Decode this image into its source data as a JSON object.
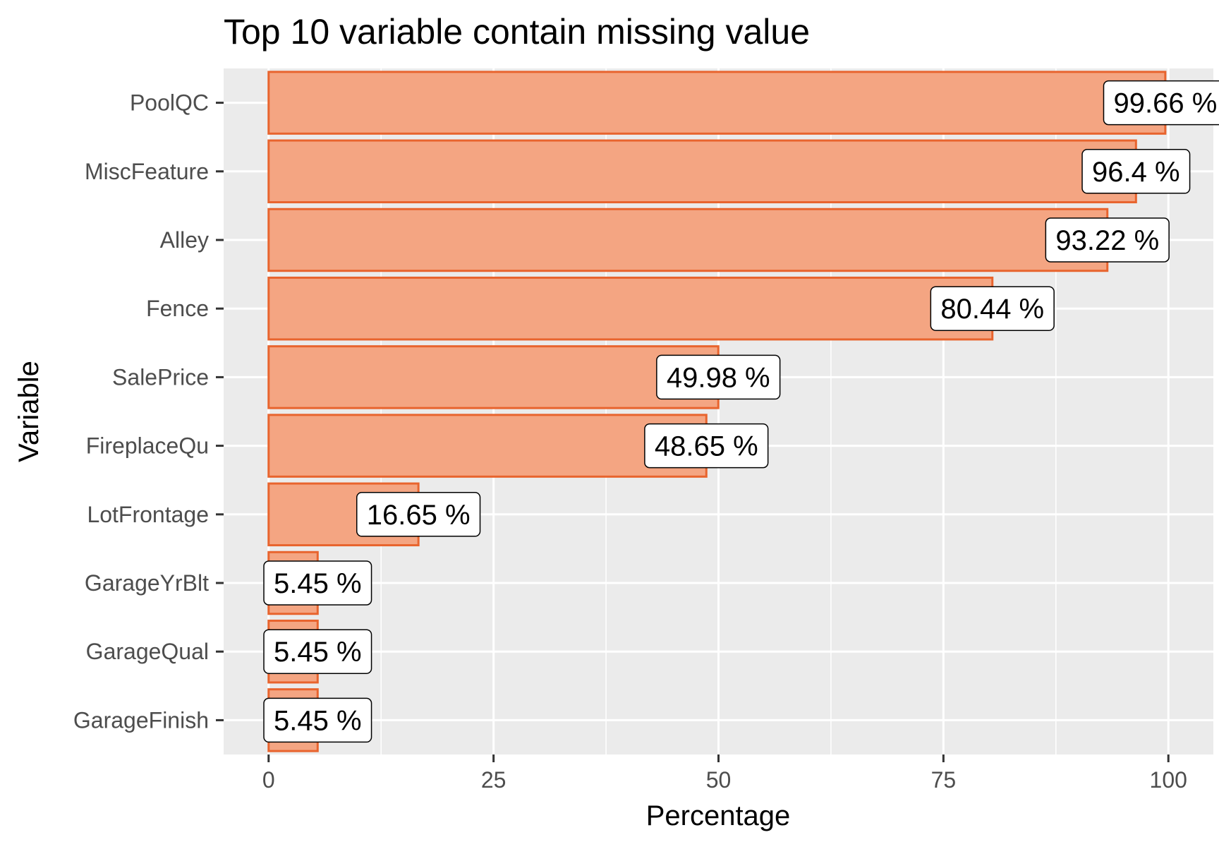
{
  "chart_data": {
    "type": "bar",
    "orientation": "horizontal",
    "title": "Top 10 variable contain missing value",
    "xlabel": "Percentage",
    "ylabel": "Variable",
    "xlim": [
      -5,
      105
    ],
    "x_ticks": [
      0,
      25,
      50,
      75,
      100
    ],
    "x_tick_labels": [
      "0",
      "25",
      "50",
      "75",
      "100"
    ],
    "grid": true,
    "legend": "none",
    "categories": [
      "PoolQC",
      "MiscFeature",
      "Alley",
      "Fence",
      "SalePrice",
      "FireplaceQu",
      "LotFrontage",
      "GarageYrBlt",
      "GarageQual",
      "GarageFinish"
    ],
    "values": [
      99.66,
      96.4,
      93.22,
      80.44,
      49.98,
      48.65,
      16.65,
      5.45,
      5.45,
      5.45
    ],
    "data_labels": [
      "99.66 %",
      "96.4 %",
      "93.22 %",
      "80.44 %",
      "49.98 %",
      "48.65 %",
      "16.65 %",
      "5.45 %",
      "5.45 %",
      "5.45 %"
    ],
    "colors": {
      "bar_fill": "#f4a582",
      "bar_stroke": "#e8642e",
      "panel": "#ebebeb",
      "grid": "#ffffff"
    }
  }
}
